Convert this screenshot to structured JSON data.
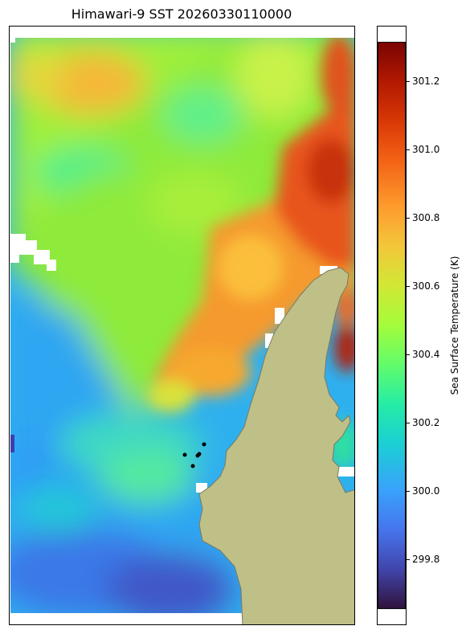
{
  "title": "Himawari-9 SST 20260330110000",
  "colorbar": {
    "label": "Sea Surface Temperature (K)",
    "ticks": [
      "301.2",
      "301.0",
      "300.8",
      "300.6",
      "300.4",
      "300.2",
      "300.0",
      "299.8"
    ],
    "colormap": "turbo",
    "range": [
      299.6,
      301.35
    ]
  },
  "map": {
    "land_color": "#bfbf88",
    "coast_color": "#7a7a60",
    "missing_color": "#ffffff",
    "markers": {
      "count": 5,
      "color": "#000000"
    }
  }
}
